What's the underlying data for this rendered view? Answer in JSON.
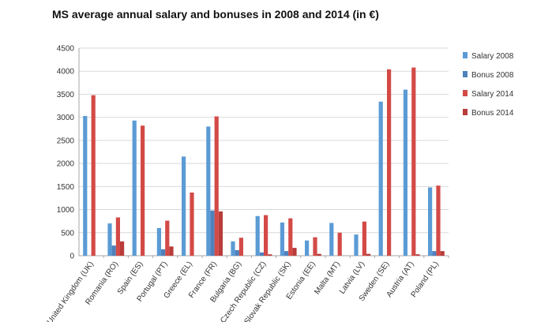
{
  "chart_data": {
    "type": "bar",
    "title": "MS average annual salary and bonuses in 2008 and 2014 (in €)",
    "xlabel": "",
    "ylabel": "",
    "ylim": [
      0,
      4500
    ],
    "yticks": [
      0,
      500,
      1000,
      1500,
      2000,
      2500,
      3000,
      3500,
      4000,
      4500
    ],
    "grid": true,
    "legend_position": "right",
    "categories": [
      "United Kingdom (UK)",
      "Romania (RO)",
      "Spain (ES)",
      "Portugal (PT)",
      "Greece (EL)",
      "France (FR)",
      "Bulgaria (BG)",
      "Czech Republic (CZ)",
      "Slovak Republic (SK)",
      "Estonia (EE)",
      "Malta (MT)",
      "Latvia (LV)",
      "Sweden (SE)",
      "Austria (AT)",
      "Poland (PL)"
    ],
    "series": [
      {
        "name": "Salary 2008",
        "color": "#5b9bd5",
        "values": [
          3030,
          700,
          2930,
          600,
          2150,
          2800,
          310,
          860,
          720,
          330,
          710,
          460,
          3340,
          3600,
          1480
        ]
      },
      {
        "name": "Bonus 2008",
        "color": "#4f81bd",
        "values": [
          0,
          220,
          0,
          140,
          0,
          980,
          120,
          70,
          100,
          0,
          0,
          0,
          0,
          0,
          100
        ]
      },
      {
        "name": "Salary 2014",
        "color": "#d34a47",
        "values": [
          3480,
          830,
          2820,
          760,
          1370,
          3020,
          390,
          880,
          810,
          400,
          500,
          740,
          4040,
          4080,
          1520
        ]
      },
      {
        "name": "Bonus 2014",
        "color": "#b83c3a",
        "values": [
          0,
          310,
          0,
          200,
          0,
          960,
          0,
          30,
          170,
          40,
          0,
          40,
          0,
          30,
          100
        ]
      }
    ]
  }
}
